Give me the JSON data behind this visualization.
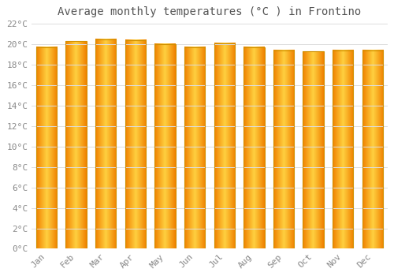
{
  "title": "Average monthly temperatures (°C ) in Frontino",
  "months": [
    "Jan",
    "Feb",
    "Mar",
    "Apr",
    "May",
    "Jun",
    "Jul",
    "Aug",
    "Sep",
    "Oct",
    "Nov",
    "Dec"
  ],
  "values": [
    19.7,
    20.3,
    20.5,
    20.4,
    20.0,
    19.7,
    20.1,
    19.7,
    19.4,
    19.3,
    19.4,
    19.4
  ],
  "bar_color_center": "#FFD040",
  "bar_color_edge": "#F08000",
  "background_color": "#FFFFFF",
  "grid_color": "#DDDDDD",
  "text_color": "#888888",
  "title_color": "#555555",
  "ylim": [
    0,
    22
  ],
  "ytick_step": 2,
  "bar_width": 0.7
}
